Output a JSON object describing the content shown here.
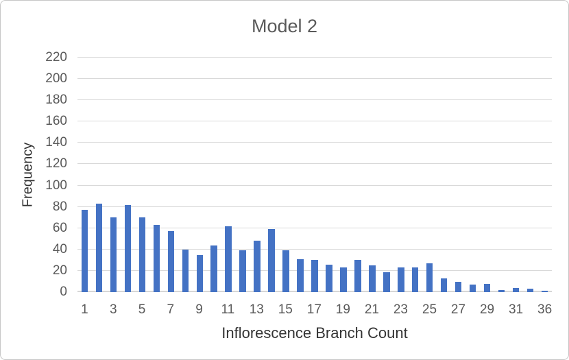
{
  "chart_data": {
    "type": "bar",
    "title": "Model 2",
    "xlabel": "Inflorescence Branch Count",
    "ylabel": "Frequency",
    "categories": [
      1,
      2,
      3,
      4,
      5,
      6,
      7,
      8,
      9,
      10,
      11,
      12,
      13,
      14,
      15,
      16,
      17,
      18,
      19,
      20,
      21,
      22,
      23,
      24,
      25,
      26,
      27,
      28,
      29,
      30,
      31,
      32,
      36
    ],
    "values": [
      77,
      83,
      70,
      82,
      70,
      63,
      57,
      40,
      35,
      44,
      62,
      39,
      48,
      59,
      39,
      31,
      30,
      26,
      23,
      30,
      25,
      19,
      23,
      23,
      27,
      13,
      10,
      7,
      8,
      2,
      4,
      3,
      1
    ],
    "x_tick_labels_shown": [
      1,
      3,
      5,
      7,
      9,
      11,
      13,
      15,
      17,
      19,
      21,
      23,
      25,
      27,
      29,
      31,
      36
    ],
    "ylim": [
      0,
      220
    ],
    "ytick_step": 20,
    "grid": "horizontal",
    "legend": "none",
    "bar_color": "#4472C4",
    "gridline_color": "#D9D9D9",
    "tick_label_color": "#595959",
    "title_color": "#595959",
    "axis_title_color": "#333333"
  }
}
